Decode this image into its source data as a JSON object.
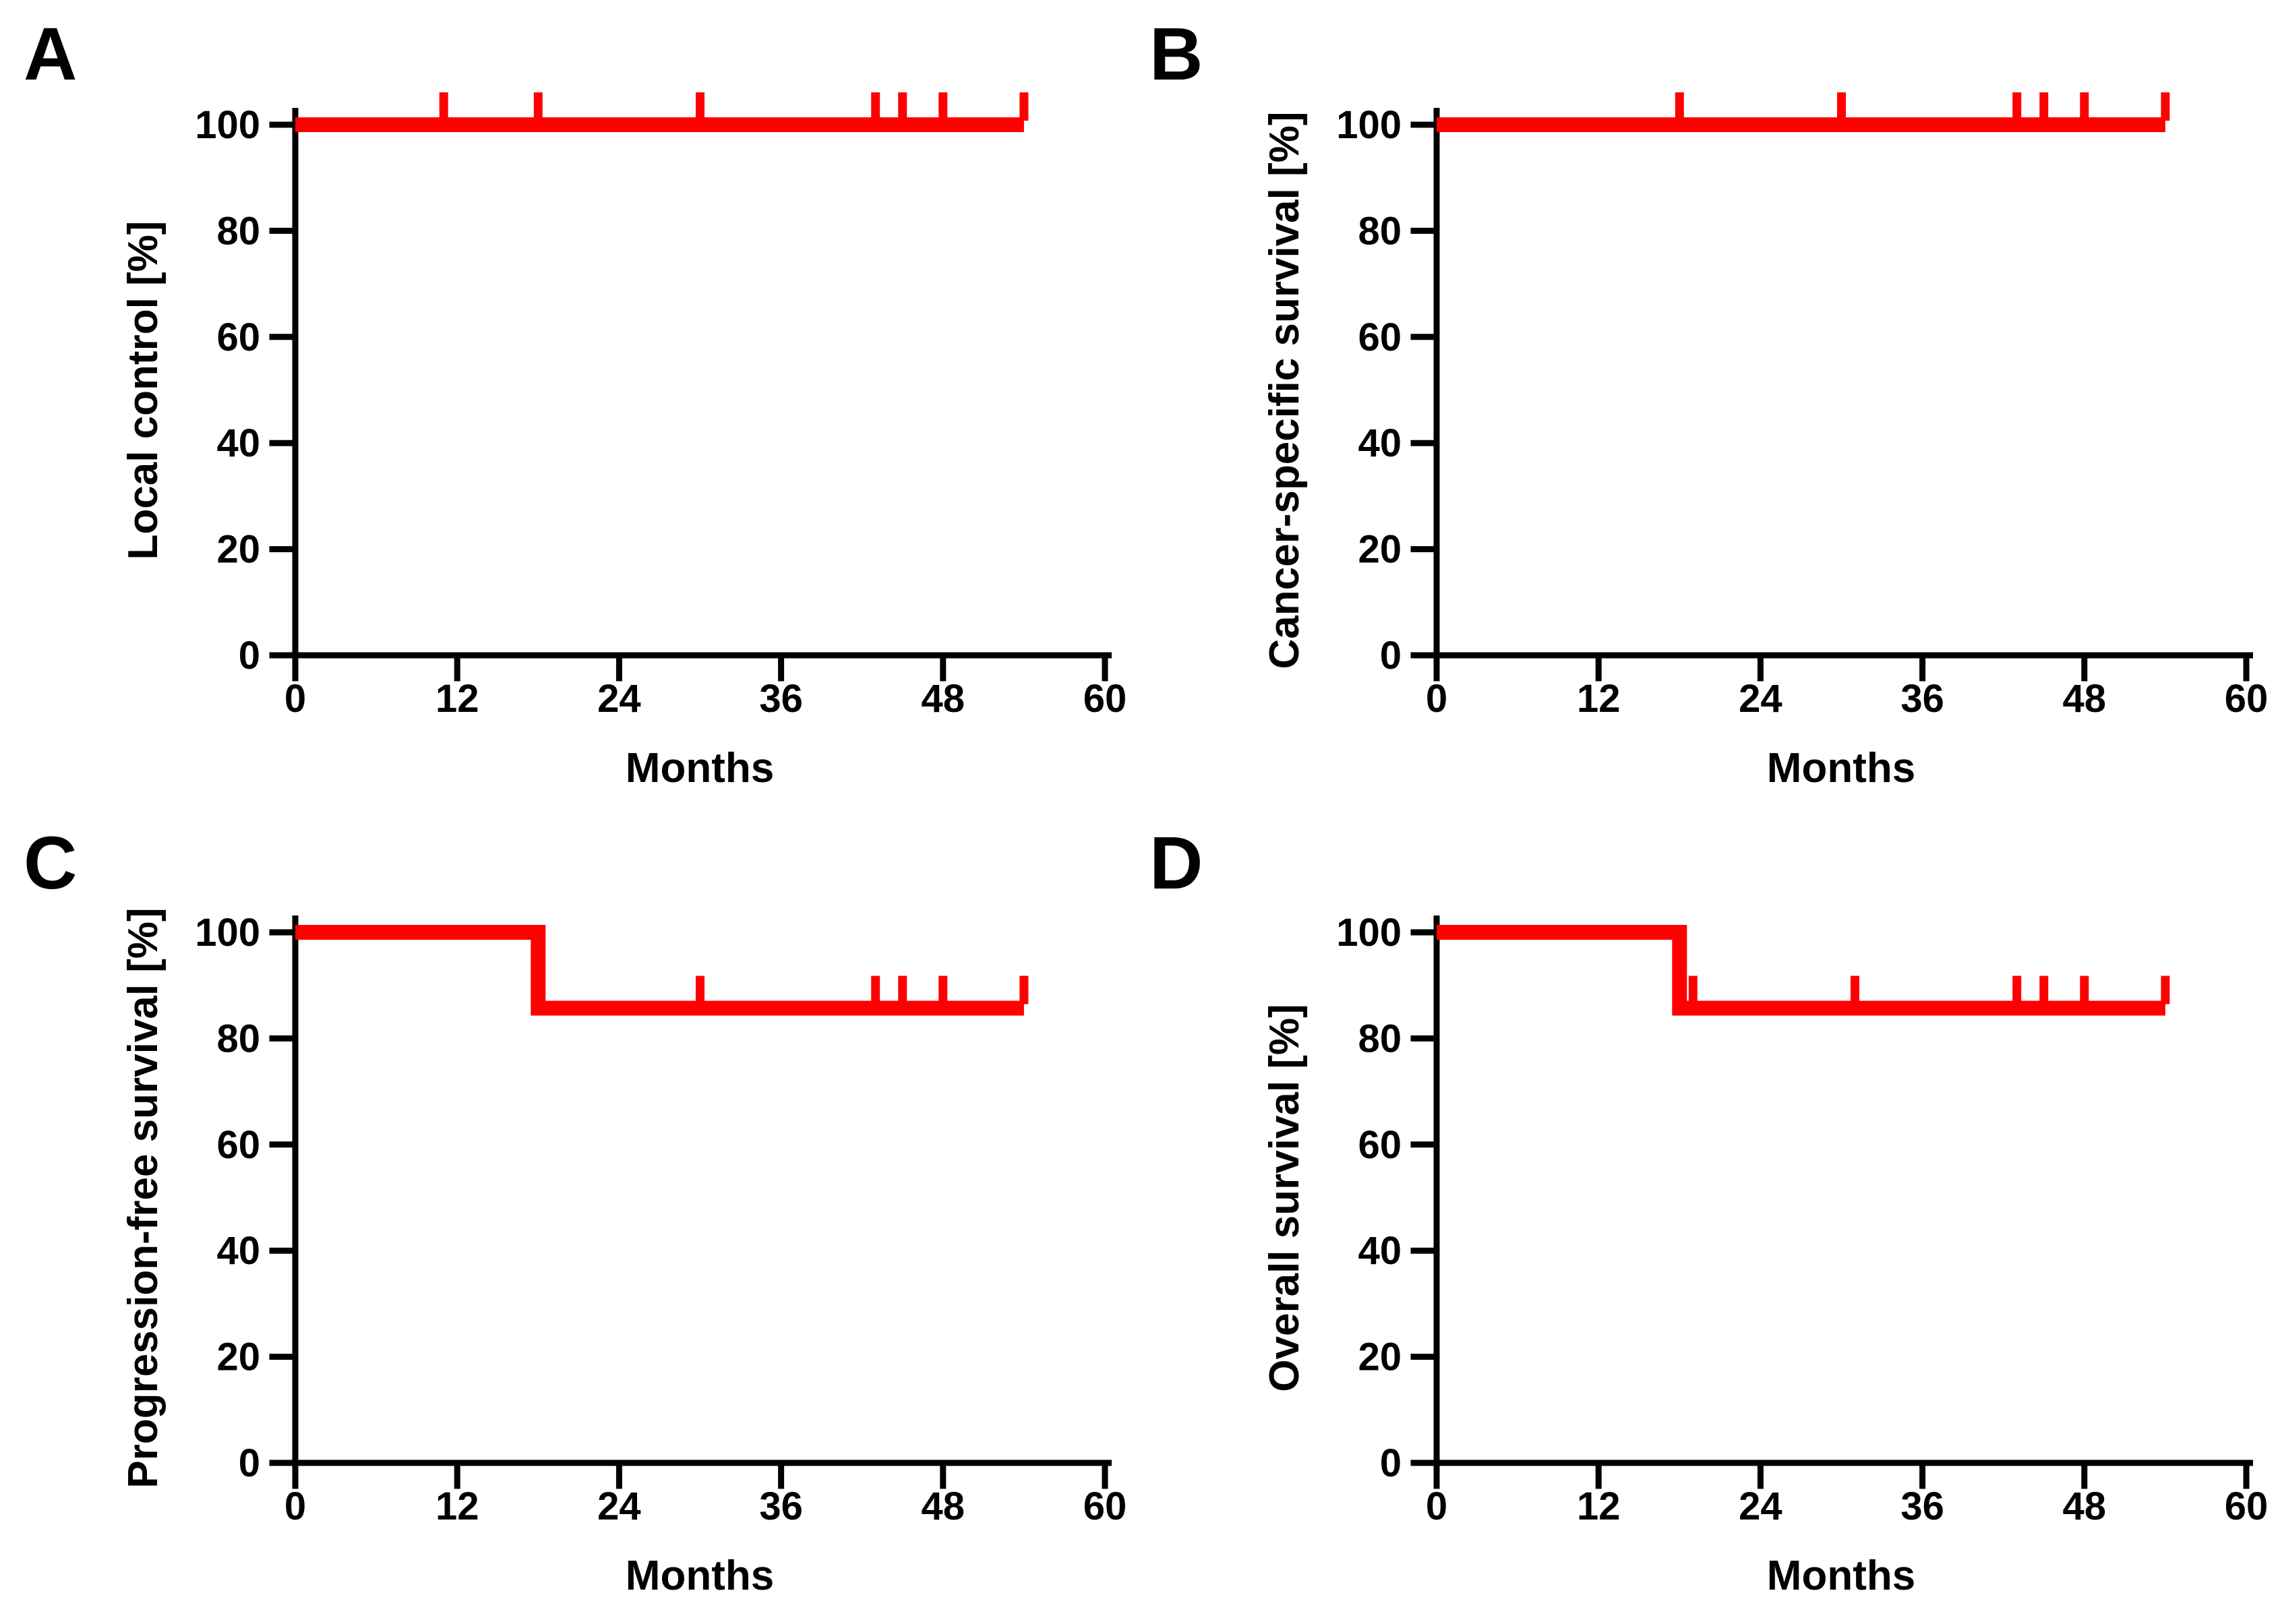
{
  "figure": {
    "background_color": "#FFFFFF",
    "axis_color": "#000000",
    "curve_color": "#FF0000"
  },
  "chart_data": [
    {
      "panel_label": "A",
      "type": "line",
      "subtype": "kaplan-meier-step",
      "xlabel": "Months",
      "ylabel": "Local control [%]",
      "xlim": [
        0,
        60
      ],
      "ylim": [
        0,
        100
      ],
      "xticks": [
        0,
        12,
        24,
        36,
        48,
        60
      ],
      "yticks": [
        0,
        20,
        40,
        60,
        80,
        100
      ],
      "grid": false,
      "legend": "none",
      "series": [
        {
          "color": "#FF0000",
          "points": [
            [
              0,
              100
            ],
            [
              54,
              100
            ]
          ],
          "censor_marks": [
            11,
            18,
            30,
            43,
            45,
            48,
            54
          ],
          "event_times": [],
          "curve_end_month": 54
        }
      ]
    },
    {
      "panel_label": "B",
      "type": "line",
      "subtype": "kaplan-meier-step",
      "xlabel": "Months",
      "ylabel": "Cancer-specific survival [%]",
      "xlim": [
        0,
        60
      ],
      "ylim": [
        0,
        100
      ],
      "xticks": [
        0,
        12,
        24,
        36,
        48,
        60
      ],
      "yticks": [
        0,
        20,
        40,
        60,
        80,
        100
      ],
      "grid": false,
      "legend": "none",
      "series": [
        {
          "color": "#FF0000",
          "points": [
            [
              0,
              100
            ],
            [
              54,
              100
            ]
          ],
          "censor_marks": [
            18,
            30,
            43,
            45,
            48,
            54
          ],
          "event_times": [],
          "curve_end_month": 54
        }
      ]
    },
    {
      "panel_label": "C",
      "type": "line",
      "subtype": "kaplan-meier-step",
      "xlabel": "Months",
      "ylabel": "Progression-free survival [%]",
      "xlim": [
        0,
        60
      ],
      "ylim": [
        0,
        100
      ],
      "xticks": [
        0,
        12,
        24,
        36,
        48,
        60
      ],
      "yticks": [
        0,
        20,
        40,
        60,
        80,
        100
      ],
      "grid": false,
      "legend": "none",
      "series": [
        {
          "color": "#FF0000",
          "points": [
            [
              0,
              100
            ],
            [
              18,
              100
            ],
            [
              18,
              85.7
            ],
            [
              54,
              85.7
            ]
          ],
          "censor_marks": [
            30,
            43,
            45,
            48,
            54
          ],
          "event_times": [
            18
          ],
          "curve_end_month": 54
        }
      ]
    },
    {
      "panel_label": "D",
      "type": "line",
      "subtype": "kaplan-meier-step",
      "xlabel": "Months",
      "ylabel": "Overall survival [%]",
      "xlim": [
        0,
        60
      ],
      "ylim": [
        0,
        100
      ],
      "xticks": [
        0,
        12,
        24,
        36,
        48,
        60
      ],
      "yticks": [
        0,
        20,
        40,
        60,
        80,
        100
      ],
      "grid": false,
      "legend": "none",
      "series": [
        {
          "color": "#FF0000",
          "points": [
            [
              0,
              100
            ],
            [
              18,
              100
            ],
            [
              18,
              85.7
            ],
            [
              54,
              85.7
            ]
          ],
          "censor_marks": [
            19,
            31,
            43,
            45,
            48,
            54
          ],
          "event_times": [
            18
          ],
          "curve_end_month": 54
        }
      ]
    }
  ]
}
